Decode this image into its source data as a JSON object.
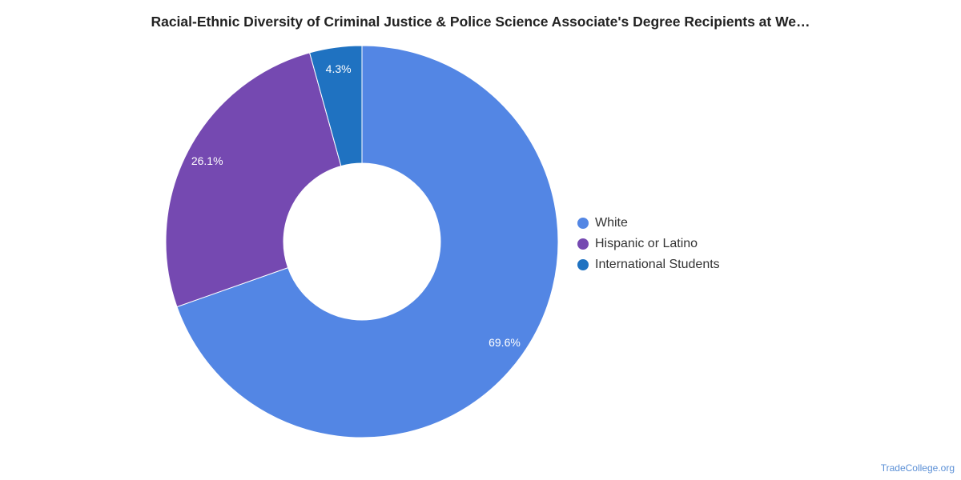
{
  "chart_data": {
    "type": "pie",
    "title": "Racial-Ethnic Diversity of Criminal Justice & Police Science Associate's Degree Recipients at We…",
    "donut": true,
    "categories": [
      "White",
      "Hispanic or Latino",
      "International Students"
    ],
    "values": [
      69.6,
      26.1,
      4.3
    ],
    "value_labels": [
      "69.6%",
      "26.1%",
      "4.3%"
    ],
    "colors": [
      "#5386e4",
      "#7549b1",
      "#1f72c1"
    ],
    "legend_position": "right"
  },
  "watermark": "TradeCollege.org"
}
